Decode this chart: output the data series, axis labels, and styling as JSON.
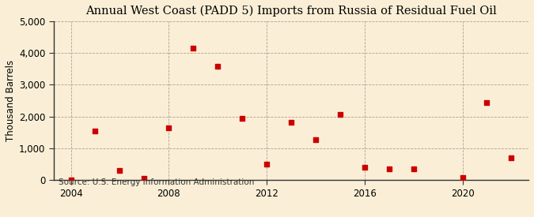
{
  "title": "Annual West Coast (PADD 5) Imports from Russia of Residual Fuel Oil",
  "ylabel": "Thousand Barrels",
  "source": "Source: U.S. Energy Information Administration",
  "background_color": "#faefd6",
  "marker_color": "#cc0000",
  "years": [
    2004,
    2005,
    2006,
    2007,
    2008,
    2009,
    2010,
    2011,
    2012,
    2013,
    2014,
    2015,
    2016,
    2017,
    2018,
    2020,
    2021,
    2022
  ],
  "values": [
    0,
    1550,
    310,
    55,
    1650,
    4150,
    3580,
    1950,
    490,
    1820,
    1280,
    2060,
    390,
    350,
    360,
    80,
    2430,
    700
  ],
  "xlim": [
    2003.3,
    2022.7
  ],
  "ylim": [
    0,
    5000
  ],
  "yticks": [
    0,
    1000,
    2000,
    3000,
    4000,
    5000
  ],
  "ytick_labels": [
    "0",
    "1,000",
    "2,000",
    "3,000",
    "4,000",
    "5,000"
  ],
  "xticks": [
    2004,
    2008,
    2012,
    2016,
    2020
  ],
  "grid_color": "#b0a090",
  "title_fontsize": 10.5,
  "axis_fontsize": 8.5,
  "source_fontsize": 7.5
}
